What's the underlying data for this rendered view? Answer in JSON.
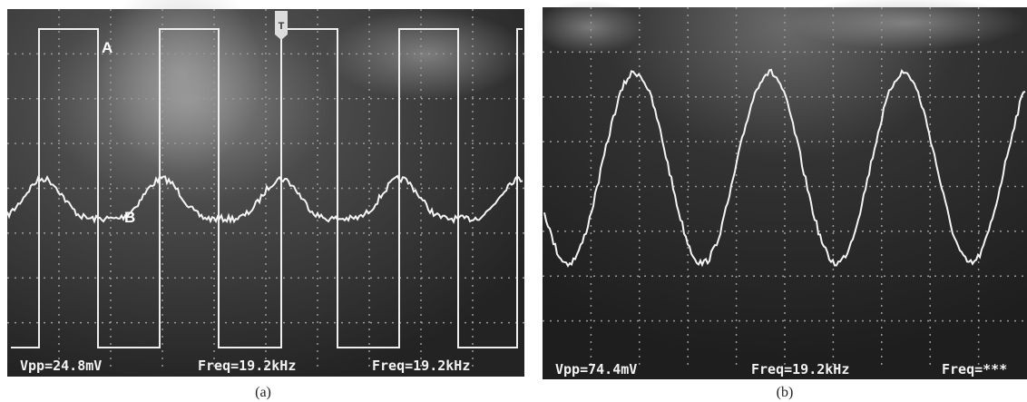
{
  "panel_a": {
    "caption": "(a)",
    "trigger": "T",
    "trace_labels": [
      "A",
      "B"
    ],
    "readouts": [
      "Vpp=24.8mV",
      "Freq=19.2kHz",
      "Freq=19.2kHz"
    ]
  },
  "panel_b": {
    "caption": "(b)",
    "readouts": [
      "Vpp=74.4mV",
      "Freq=19.2kHz",
      "Freq=***"
    ]
  }
}
